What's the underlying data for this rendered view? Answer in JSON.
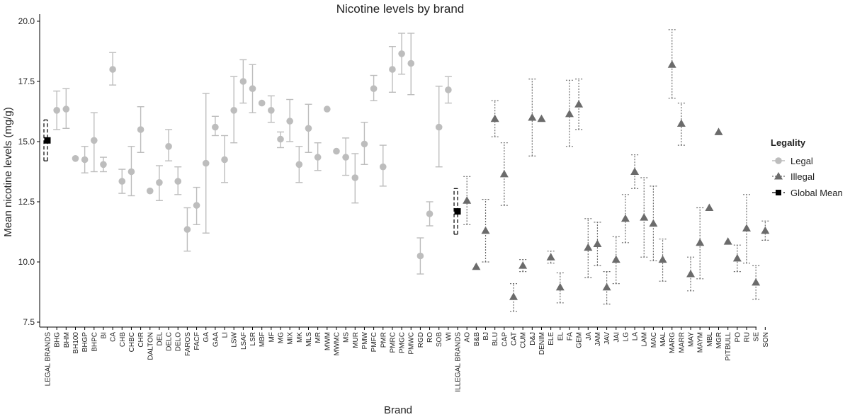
{
  "chart_data": {
    "type": "scatter",
    "title": "Nicotine levels by brand",
    "xlabel": "Brand",
    "ylabel": "Mean nicotine levels (mg/g)",
    "ylim": [
      7.5,
      20.0
    ],
    "yticks": [
      "7.5",
      "10.0",
      "12.5",
      "15.0",
      "17.5",
      "20.0"
    ],
    "grid": false,
    "legend": {
      "title": "Legality",
      "position": "right",
      "entries": [
        "Legal",
        "Illegal",
        "Global Mean"
      ]
    },
    "colors": {
      "legal": "#bdbdbd",
      "illegal": "#6b6b6b",
      "global_mean": "#000000"
    },
    "points": [
      {
        "brand": "LEGAL BRANDS",
        "group": "Global Mean",
        "y": 15.05,
        "lo": 14.2,
        "hi": 15.9
      },
      {
        "brand": "BHG",
        "group": "Legal",
        "y": 16.3,
        "lo": 15.5,
        "hi": 17.1
      },
      {
        "brand": "BHM",
        "group": "Legal",
        "y": 16.35,
        "lo": 15.55,
        "hi": 17.2
      },
      {
        "brand": "BH100",
        "group": "Legal",
        "y": 14.3,
        "lo": null,
        "hi": null
      },
      {
        "brand": "BHGP",
        "group": "Legal",
        "y": 14.25,
        "lo": 13.7,
        "hi": 14.8
      },
      {
        "brand": "BHPC",
        "group": "Legal",
        "y": 15.05,
        "lo": 13.75,
        "hi": 16.2
      },
      {
        "brand": "BI",
        "group": "Legal",
        "y": 14.05,
        "lo": 13.75,
        "hi": 14.35
      },
      {
        "brand": "CA",
        "group": "Legal",
        "y": 18.0,
        "lo": 17.35,
        "hi": 18.7
      },
      {
        "brand": "CHB",
        "group": "Legal",
        "y": 13.35,
        "lo": 12.85,
        "hi": 13.85
      },
      {
        "brand": "CHBC",
        "group": "Legal",
        "y": 13.75,
        "lo": 12.75,
        "hi": 14.8
      },
      {
        "brand": "CHR",
        "group": "Legal",
        "y": 15.5,
        "lo": 14.55,
        "hi": 16.45
      },
      {
        "brand": "DALTON",
        "group": "Legal",
        "y": 12.95,
        "lo": null,
        "hi": null
      },
      {
        "brand": "DEL",
        "group": "Legal",
        "y": 13.3,
        "lo": 12.55,
        "hi": 14.0
      },
      {
        "brand": "DELC",
        "group": "Legal",
        "y": 14.8,
        "lo": 14.2,
        "hi": 15.5
      },
      {
        "brand": "DELO",
        "group": "Legal",
        "y": 13.35,
        "lo": 12.8,
        "hi": 13.95
      },
      {
        "brand": "FAROS",
        "group": "Legal",
        "y": 11.35,
        "lo": 10.45,
        "hi": 12.25
      },
      {
        "brand": "FACF",
        "group": "Legal",
        "y": 12.35,
        "lo": 11.55,
        "hi": 13.1
      },
      {
        "brand": "GA",
        "group": "Legal",
        "y": 14.1,
        "lo": 11.2,
        "hi": 17.0
      },
      {
        "brand": "GAA",
        "group": "Legal",
        "y": 15.6,
        "lo": 15.25,
        "hi": 16.05
      },
      {
        "brand": "LI",
        "group": "Legal",
        "y": 14.25,
        "lo": 13.3,
        "hi": 15.25
      },
      {
        "brand": "LSW",
        "group": "Legal",
        "y": 16.3,
        "lo": 14.95,
        "hi": 17.7
      },
      {
        "brand": "LSAF",
        "group": "Legal",
        "y": 17.5,
        "lo": 16.6,
        "hi": 18.4
      },
      {
        "brand": "LSR",
        "group": "Legal",
        "y": 17.2,
        "lo": 16.2,
        "hi": 18.2
      },
      {
        "brand": "MBF",
        "group": "Legal",
        "y": 16.6,
        "lo": null,
        "hi": null
      },
      {
        "brand": "MF",
        "group": "Legal",
        "y": 16.3,
        "lo": 15.8,
        "hi": 16.9
      },
      {
        "brand": "MG",
        "group": "Legal",
        "y": 15.1,
        "lo": 14.75,
        "hi": 15.4
      },
      {
        "brand": "MIX",
        "group": "Legal",
        "y": 15.85,
        "lo": 15.0,
        "hi": 16.75
      },
      {
        "brand": "MK",
        "group": "Legal",
        "y": 14.05,
        "lo": 13.3,
        "hi": 14.8
      },
      {
        "brand": "MLS",
        "group": "Legal",
        "y": 15.55,
        "lo": 14.55,
        "hi": 16.55
      },
      {
        "brand": "MR",
        "group": "Legal",
        "y": 14.35,
        "lo": 13.8,
        "hi": 14.95
      },
      {
        "brand": "MWM",
        "group": "Legal",
        "y": 16.35,
        "lo": null,
        "hi": null
      },
      {
        "brand": "MWMC",
        "group": "Legal",
        "y": 14.6,
        "lo": null,
        "hi": null
      },
      {
        "brand": "MS",
        "group": "Legal",
        "y": 14.35,
        "lo": 13.6,
        "hi": 15.15
      },
      {
        "brand": "MUR",
        "group": "Legal",
        "y": 13.5,
        "lo": 12.45,
        "hi": 14.5
      },
      {
        "brand": "PMW",
        "group": "Legal",
        "y": 14.9,
        "lo": 14.05,
        "hi": 15.8
      },
      {
        "brand": "PMFC",
        "group": "Legal",
        "y": 17.2,
        "lo": 16.7,
        "hi": 17.75
      },
      {
        "brand": "PMR",
        "group": "Legal",
        "y": 13.95,
        "lo": 13.15,
        "hi": 14.85
      },
      {
        "brand": "PMRC",
        "group": "Legal",
        "y": 18.0,
        "lo": 17.05,
        "hi": 18.95
      },
      {
        "brand": "PMGC",
        "group": "Legal",
        "y": 18.65,
        "lo": 17.8,
        "hi": 19.5
      },
      {
        "brand": "PMWC",
        "group": "Legal",
        "y": 18.25,
        "lo": 16.95,
        "hi": 19.5
      },
      {
        "brand": "RGD",
        "group": "Legal",
        "y": 10.25,
        "lo": 9.5,
        "hi": 11.0
      },
      {
        "brand": "RO",
        "group": "Legal",
        "y": 12.0,
        "lo": 11.5,
        "hi": 12.5
      },
      {
        "brand": "SOB",
        "group": "Legal",
        "y": 15.6,
        "lo": 13.95,
        "hi": 17.3
      },
      {
        "brand": "WI",
        "group": "Legal",
        "y": 17.15,
        "lo": 16.6,
        "hi": 17.7
      },
      {
        "brand": "ILLEGAL BRANDS",
        "group": "Global Mean",
        "y": 12.1,
        "lo": 11.15,
        "hi": 13.05
      },
      {
        "brand": "AO",
        "group": "Illegal",
        "y": 12.55,
        "lo": 11.55,
        "hi": 13.55
      },
      {
        "brand": "B&B",
        "group": "Illegal",
        "y": 9.8,
        "lo": null,
        "hi": null
      },
      {
        "brand": "BJ",
        "group": "Illegal",
        "y": 11.3,
        "lo": 10.0,
        "hi": 12.6
      },
      {
        "brand": "BLU",
        "group": "Illegal",
        "y": 15.95,
        "lo": 15.2,
        "hi": 16.7
      },
      {
        "brand": "CAP",
        "group": "Illegal",
        "y": 13.65,
        "lo": 12.35,
        "hi": 14.95
      },
      {
        "brand": "CAT",
        "group": "Illegal",
        "y": 8.55,
        "lo": 7.95,
        "hi": 9.1
      },
      {
        "brand": "CUM",
        "group": "Illegal",
        "y": 9.85,
        "lo": 9.6,
        "hi": 10.1
      },
      {
        "brand": "D&J",
        "group": "Illegal",
        "y": 16.0,
        "lo": 14.4,
        "hi": 17.6
      },
      {
        "brand": "DENIM",
        "group": "Illegal",
        "y": 15.95,
        "lo": null,
        "hi": null
      },
      {
        "brand": "ELE",
        "group": "Illegal",
        "y": 10.2,
        "lo": 9.95,
        "hi": 10.45
      },
      {
        "brand": "EL",
        "group": "Illegal",
        "y": 8.95,
        "lo": 8.3,
        "hi": 9.55
      },
      {
        "brand": "FA",
        "group": "Illegal",
        "y": 16.15,
        "lo": 14.8,
        "hi": 17.55
      },
      {
        "brand": "GEM",
        "group": "Illegal",
        "y": 16.55,
        "lo": 15.5,
        "hi": 17.6
      },
      {
        "brand": "JA",
        "group": "Illegal",
        "y": 10.6,
        "lo": 9.35,
        "hi": 11.8
      },
      {
        "brand": "JAM",
        "group": "Illegal",
        "y": 10.75,
        "lo": 9.85,
        "hi": 11.65
      },
      {
        "brand": "JAV",
        "group": "Illegal",
        "y": 8.95,
        "lo": 8.25,
        "hi": 9.6
      },
      {
        "brand": "JAI",
        "group": "Illegal",
        "y": 10.1,
        "lo": 9.1,
        "hi": 11.05
      },
      {
        "brand": "LG",
        "group": "Illegal",
        "y": 11.8,
        "lo": 10.8,
        "hi": 12.8
      },
      {
        "brand": "LA",
        "group": "Illegal",
        "y": 13.75,
        "lo": 13.05,
        "hi": 14.45
      },
      {
        "brand": "LAM",
        "group": "Illegal",
        "y": 11.85,
        "lo": 10.2,
        "hi": 13.5
      },
      {
        "brand": "MAC",
        "group": "Illegal",
        "y": 11.6,
        "lo": 10.05,
        "hi": 13.15
      },
      {
        "brand": "MAL",
        "group": "Illegal",
        "y": 10.1,
        "lo": 9.2,
        "hi": 10.95
      },
      {
        "brand": "MARG",
        "group": "Illegal",
        "y": 18.2,
        "lo": 16.8,
        "hi": 19.65
      },
      {
        "brand": "MARR",
        "group": "Illegal",
        "y": 15.75,
        "lo": 14.85,
        "hi": 16.6
      },
      {
        "brand": "MAY",
        "group": "Illegal",
        "y": 9.5,
        "lo": 8.8,
        "hi": 10.2
      },
      {
        "brand": "MAYM",
        "group": "Illegal",
        "y": 10.8,
        "lo": 9.3,
        "hi": 12.25
      },
      {
        "brand": "MBL",
        "group": "Illegal",
        "y": 12.25,
        "lo": null,
        "hi": null
      },
      {
        "brand": "MGR",
        "group": "Illegal",
        "y": 15.4,
        "lo": null,
        "hi": null
      },
      {
        "brand": "PITBULL",
        "group": "Illegal",
        "y": 10.85,
        "lo": null,
        "hi": null
      },
      {
        "brand": "PO",
        "group": "Illegal",
        "y": 10.15,
        "lo": 9.6,
        "hi": 10.7
      },
      {
        "brand": "RU",
        "group": "Illegal",
        "y": 11.4,
        "lo": 9.95,
        "hi": 12.8
      },
      {
        "brand": "SE",
        "group": "Illegal",
        "y": 9.15,
        "lo": 8.45,
        "hi": 9.85
      },
      {
        "brand": "SON",
        "group": "Illegal",
        "y": 11.3,
        "lo": 10.9,
        "hi": 11.7
      }
    ]
  }
}
